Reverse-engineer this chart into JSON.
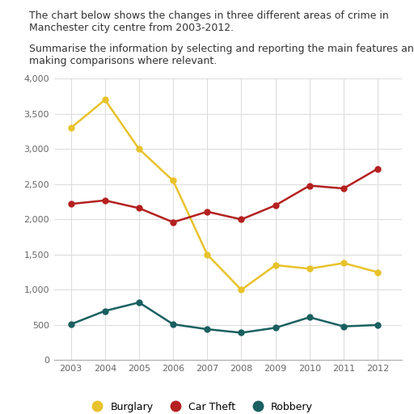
{
  "years": [
    2003,
    2004,
    2005,
    2006,
    2007,
    2008,
    2009,
    2010,
    2011,
    2012
  ],
  "burglary": [
    3300,
    3700,
    3000,
    2550,
    1500,
    1000,
    1350,
    1300,
    1380,
    1250
  ],
  "car_theft": [
    2220,
    2270,
    2160,
    1960,
    2110,
    2000,
    2200,
    2480,
    2440,
    2720
  ],
  "robbery": [
    510,
    700,
    820,
    510,
    440,
    390,
    460,
    610,
    480,
    500
  ],
  "burglary_color": "#e8c22a",
  "car_theft_color": "#b52020",
  "robbery_color": "#1a6060",
  "ylim": [
    0,
    4000
  ],
  "yticks": [
    0,
    500,
    1000,
    1500,
    2000,
    2500,
    3000,
    3500,
    4000
  ],
  "ytick_labels": [
    "0",
    "500",
    "1,000",
    "1,500",
    "2,000",
    "2,500",
    "3,000",
    "3,500",
    "4,000"
  ],
  "title_line1": "The chart below shows the changes in three different areas of crime in",
  "title_line2": "Manchester city centre from 2003-2012.",
  "title_line3": "Summarise the information by selecting and reporting the main features and",
  "title_line4": "making comparisons where relevant.",
  "legend_labels": [
    "Burglary",
    "Car Theft",
    "Robbery"
  ],
  "marker_size": 6,
  "line_width": 1.8,
  "bg_color": "#ffffff",
  "text_color": "#333333",
  "grid_color": "#dddddd",
  "tick_color": "#666666"
}
